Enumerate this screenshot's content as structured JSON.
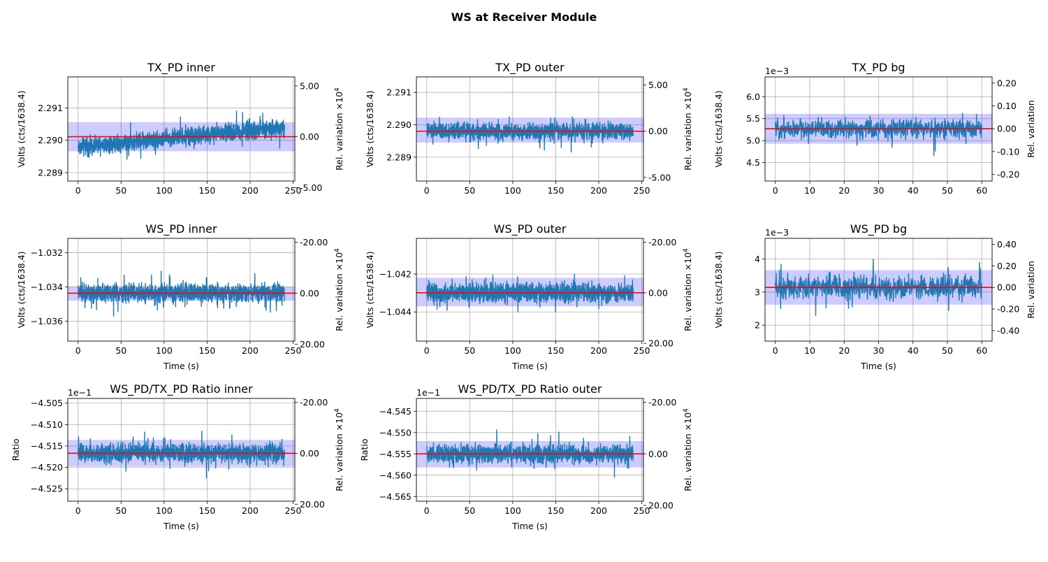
{
  "figure": {
    "suptitle": "WS at Receiver Module"
  },
  "colors": {
    "trace": "#1f77b4",
    "mean": "#ff0000",
    "band": "#0000ff",
    "grid": "#b0b0b0"
  },
  "chart_data": [
    {
      "type": "line",
      "title": "TX_PD inner",
      "xlabel": "",
      "ylabel": "Volts (cts/1638.4)",
      "y2label": "Rel. variation ×10",
      "y2label_sup": "4",
      "x_range": [
        0,
        240
      ],
      "xlim": [
        -12,
        252
      ],
      "ylim": [
        2.28874,
        2.29196
      ],
      "xticks": [
        0,
        50,
        100,
        150,
        200,
        250
      ],
      "yticks": [
        {
          "v": 2.289,
          "t": "2.289"
        },
        {
          "v": 2.29,
          "t": "2.290"
        },
        {
          "v": 2.291,
          "t": "2.291"
        }
      ],
      "y2ticks": [
        {
          "v": -5,
          "t": "-5.00"
        },
        {
          "v": 0,
          "t": "0.00"
        },
        {
          "v": 5,
          "t": "5.00"
        }
      ],
      "mean": 2.29011,
      "band": [
        2.28966,
        2.29056
      ],
      "trend_start": 2.2898,
      "trend_end": 2.2904,
      "noise": 0.00038,
      "spread": [
        2.2887,
        2.2918
      ],
      "y_offset_label": ""
    },
    {
      "type": "line",
      "title": "TX_PD outer",
      "xlabel": "",
      "ylabel": "Volts (cts/1638.4)",
      "y2label": "Rel. variation ×10",
      "y2label_sup": "4",
      "x_range": [
        0,
        240
      ],
      "xlim": [
        -12,
        252
      ],
      "ylim": [
        2.28826,
        2.29148
      ],
      "xticks": [
        0,
        50,
        100,
        150,
        200,
        250
      ],
      "yticks": [
        {
          "v": 2.289,
          "t": "2.289"
        },
        {
          "v": 2.29,
          "t": "2.290"
        },
        {
          "v": 2.291,
          "t": "2.291"
        }
      ],
      "y2ticks": [
        {
          "v": -5,
          "t": "-5.00"
        },
        {
          "v": 0,
          "t": "0.00"
        },
        {
          "v": 5,
          "t": "5.00"
        }
      ],
      "mean": 2.2898,
      "band": [
        2.28945,
        2.29022
      ],
      "trend_start": 2.2898,
      "trend_end": 2.2898,
      "noise": 0.00035,
      "spread": [
        2.2884,
        2.2913
      ],
      "y_offset_label": ""
    },
    {
      "type": "line",
      "title": "TX_PD bg",
      "xlabel": "",
      "ylabel": "Volts (cts/1638.4)",
      "y2label": "Rel. variation",
      "y2label_sup": "",
      "x_range": [
        0,
        60
      ],
      "xlim": [
        -3,
        63
      ],
      "ylim": [
        4.08,
        6.45
      ],
      "xticks": [
        0,
        10,
        20,
        30,
        40,
        50,
        60
      ],
      "yticks": [
        {
          "v": 4.5,
          "t": "4.5"
        },
        {
          "v": 5.0,
          "t": "5.0"
        },
        {
          "v": 5.5,
          "t": "5.5"
        },
        {
          "v": 6.0,
          "t": "6.0"
        }
      ],
      "y2ticks": [
        {
          "v": -0.2,
          "t": "-0.20"
        },
        {
          "v": -0.1,
          "t": "-0.10"
        },
        {
          "v": 0.0,
          "t": "0.00"
        },
        {
          "v": 0.1,
          "t": "0.10"
        },
        {
          "v": 0.2,
          "t": "0.20"
        }
      ],
      "mean": 5.27,
      "band": [
        4.93,
        5.61
      ],
      "trend_start": 5.27,
      "trend_end": 5.27,
      "noise": 0.3,
      "spread": [
        4.2,
        6.33
      ],
      "y_offset_label": "1e−3"
    },
    {
      "type": "line",
      "title": "WS_PD inner",
      "xlabel": "Time (s)",
      "ylabel": "Volts (cts/1638.4)",
      "y2label": "Rel. variation ×10",
      "y2label_sup": "4",
      "x_range": [
        0,
        240
      ],
      "xlim": [
        -12,
        252
      ],
      "ylim": [
        -1.03716,
        -1.03116
      ],
      "xticks": [
        0,
        50,
        100,
        150,
        200,
        250
      ],
      "yticks": [
        {
          "v": -1.036,
          "t": "−1.036"
        },
        {
          "v": -1.034,
          "t": "−1.034"
        },
        {
          "v": -1.032,
          "t": "−1.032"
        }
      ],
      "y2ticks": [
        {
          "v": -20,
          "t": "-20.00"
        },
        {
          "v": 0,
          "t": "0.00"
        },
        {
          "v": 20,
          "t": "20.00"
        }
      ],
      "mean": -1.03436,
      "band": [
        -1.0348,
        -1.034
      ],
      "trend_start": -1.03436,
      "trend_end": -1.03436,
      "noise": 0.00075,
      "spread": [
        -1.0367,
        -1.0315
      ],
      "y_offset_label": ""
    },
    {
      "type": "line",
      "title": "WS_PD outer",
      "xlabel": "Time (s)",
      "ylabel": "Volts (cts/1638.4)",
      "y2label": "Rel. variation ×10",
      "y2label_sup": "4",
      "x_range": [
        0,
        240
      ],
      "xlim": [
        -12,
        252
      ],
      "ylim": [
        -1.04554,
        -1.04012
      ],
      "xticks": [
        0,
        50,
        100,
        150,
        200,
        250
      ],
      "yticks": [
        {
          "v": -1.044,
          "t": "−1.044"
        },
        {
          "v": -1.042,
          "t": "−1.042"
        }
      ],
      "y2ticks": [
        {
          "v": -20,
          "t": "-20.00"
        },
        {
          "v": 0,
          "t": "0.00"
        },
        {
          "v": 20,
          "t": "20.00"
        }
      ],
      "mean": -1.04299,
      "band": [
        -1.0437,
        -1.0422
      ],
      "trend_start": -1.04299,
      "trend_end": -1.04299,
      "noise": 0.0007,
      "spread": [
        -1.0454,
        -1.0403
      ],
      "y_offset_label": ""
    },
    {
      "type": "line",
      "title": "WS_PD bg",
      "xlabel": "Time (s)",
      "ylabel": "Volts (cts/1638.4)",
      "y2label": "Rel. variation",
      "y2label_sup": "",
      "x_range": [
        0,
        60
      ],
      "xlim": [
        -3,
        63
      ],
      "ylim": [
        1.52,
        4.62
      ],
      "xticks": [
        0,
        10,
        20,
        30,
        40,
        50,
        60
      ],
      "yticks": [
        {
          "v": 2,
          "t": "2"
        },
        {
          "v": 3,
          "t": "3"
        },
        {
          "v": 4,
          "t": "4"
        }
      ],
      "y2ticks": [
        {
          "v": -0.4,
          "t": "-0.40"
        },
        {
          "v": -0.2,
          "t": "-0.20"
        },
        {
          "v": 0.0,
          "t": "0.00"
        },
        {
          "v": 0.2,
          "t": "0.20"
        },
        {
          "v": 0.4,
          "t": "0.40"
        }
      ],
      "mean": 3.14,
      "band": [
        2.62,
        3.66
      ],
      "trend_start": 3.14,
      "trend_end": 3.14,
      "noise": 0.5,
      "spread": [
        1.65,
        4.48
      ],
      "y_offset_label": "1e−3"
    },
    {
      "type": "line",
      "title": "WS_PD/TX_PD Ratio inner",
      "xlabel": "Time (s)",
      "ylabel": "Ratio",
      "y2label": "Rel. variation ×10",
      "y2label_sup": "4",
      "x_range": [
        0,
        240
      ],
      "xlim": [
        -12,
        252
      ],
      "ylim": [
        -4.5279,
        -4.5039
      ],
      "xticks": [
        0,
        50,
        100,
        150,
        200,
        250
      ],
      "yticks": [
        {
          "v": -4.525,
          "t": "−4.525"
        },
        {
          "v": -4.52,
          "t": "−4.520"
        },
        {
          "v": -4.515,
          "t": "−4.515"
        },
        {
          "v": -4.51,
          "t": "−4.510"
        },
        {
          "v": -4.505,
          "t": "−4.505"
        }
      ],
      "y2ticks": [
        {
          "v": -20,
          "t": "-20.00"
        },
        {
          "v": 0,
          "t": "0.00"
        },
        {
          "v": 20,
          "t": "20.00"
        }
      ],
      "mean": -4.5167,
      "band": [
        -4.5198,
        -4.5136
      ],
      "trend_start": -4.5167,
      "trend_end": -4.5167,
      "noise": 0.003,
      "spread": [
        -4.5272,
        -4.5052
      ],
      "y_offset_label": "1e−1"
    },
    {
      "type": "line",
      "title": "WS_PD/TX_PD Ratio outer",
      "xlabel": "Time (s)",
      "ylabel": "Ratio",
      "y2label": "Rel. variation ×10",
      "y2label_sup": "4",
      "x_range": [
        0,
        240
      ],
      "xlim": [
        -12,
        252
      ],
      "ylim": [
        -4.5661,
        -4.542
      ],
      "xticks": [
        0,
        50,
        100,
        150,
        200,
        250
      ],
      "yticks": [
        {
          "v": -4.565,
          "t": "−4.565"
        },
        {
          "v": -4.56,
          "t": "−4.560"
        },
        {
          "v": -4.555,
          "t": "−4.555"
        },
        {
          "v": -4.55,
          "t": "−4.550"
        },
        {
          "v": -4.545,
          "t": "−4.545"
        }
      ],
      "y2ticks": [
        {
          "v": -20,
          "t": "-20.00"
        },
        {
          "v": 0,
          "t": "0.00"
        },
        {
          "v": 20,
          "t": "20.00"
        }
      ],
      "mean": -4.555,
      "band": [
        -4.5582,
        -4.552
      ],
      "trend_start": -4.555,
      "trend_end": -4.555,
      "noise": 0.003,
      "spread": [
        -4.5652,
        -4.5432
      ],
      "y_offset_label": "1e−1"
    }
  ]
}
